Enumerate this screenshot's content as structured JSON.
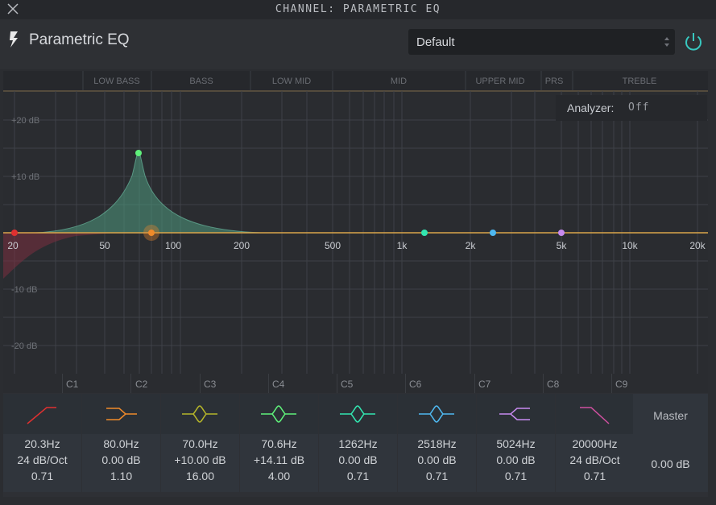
{
  "window": {
    "title": "CHANNEL: PARAMETRIC EQ"
  },
  "plugin": {
    "name": "Parametric EQ"
  },
  "preset": {
    "value": "Default"
  },
  "graph": {
    "regions": [
      "LOW BASS",
      "BASS",
      "LOW MID",
      "MID",
      "UPPER MID",
      "PRS",
      "TREBLE"
    ],
    "db_labels": [
      "+20 dB",
      "+10 dB",
      "-10 dB",
      "-20 dB"
    ],
    "freq_labels": [
      "20",
      "50",
      "100",
      "200",
      "500",
      "1k",
      "2k",
      "5k",
      "10k",
      "20k"
    ]
  },
  "analyzer": {
    "label": "Analyzer:",
    "value": "Off"
  },
  "channels": [
    "C1",
    "C2",
    "C3",
    "C4",
    "C5",
    "C6",
    "C7",
    "C8",
    "C9"
  ],
  "bands": [
    {
      "icon": "high-pass-icon",
      "color": "#e03030",
      "freq": "20.3Hz",
      "gain": "24 dB/Oct",
      "q": "0.71"
    },
    {
      "icon": "low-shelf-icon",
      "color": "#f08a2a",
      "freq": "80.0Hz",
      "gain": "0.00 dB",
      "q": "1.10"
    },
    {
      "icon": "bell-icon",
      "color": "#b5b52a",
      "freq": "70.0Hz",
      "gain": "+10.00 dB",
      "q": "16.00"
    },
    {
      "icon": "bell-icon",
      "color": "#5ff07a",
      "freq": "70.6Hz",
      "gain": "+14.11 dB",
      "q": "4.00"
    },
    {
      "icon": "bell-icon",
      "color": "#32e6b0",
      "freq": "1262Hz",
      "gain": "0.00 dB",
      "q": "0.71"
    },
    {
      "icon": "bell-icon",
      "color": "#4fb8f0",
      "freq": "2518Hz",
      "gain": "0.00 dB",
      "q": "0.71"
    },
    {
      "icon": "high-shelf-icon",
      "color": "#c88af0",
      "freq": "5024Hz",
      "gain": "0.00 dB",
      "q": "0.71"
    },
    {
      "icon": "low-pass-icon",
      "color": "#d050a0",
      "freq": "20000Hz",
      "gain": "24 dB/Oct",
      "q": "0.71"
    }
  ],
  "master": {
    "label": "Master",
    "value": "0.00 dB"
  }
}
